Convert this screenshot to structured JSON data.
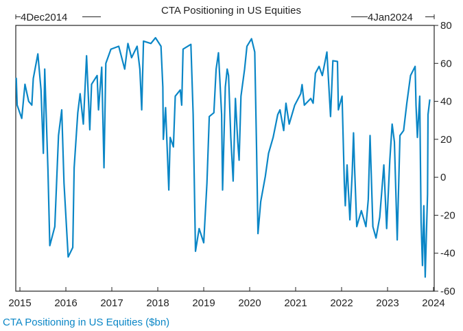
{
  "chart_data": {
    "type": "line",
    "title": "CTA Positioning in US Equities",
    "start_label": "4Dec2014",
    "end_label": "4Jan2024",
    "xlabel": "",
    "ylabel": "",
    "xlim": [
      2014.91,
      2024.015
    ],
    "ylim": [
      -60,
      80
    ],
    "x_ticks": [
      "2015",
      "2016",
      "2017",
      "2018",
      "2019",
      "2020",
      "2021",
      "2022",
      "2023",
      "2024"
    ],
    "y_ticks": [
      80,
      60,
      40,
      20,
      0,
      -20,
      -40,
      -60
    ],
    "y_axis_side": "right",
    "grid": false,
    "line_color": "#0a86c6",
    "legend": "bottom-left",
    "series": [
      {
        "name": "CTA Positioning in US Equities ($bn)",
        "points": [
          [
            2014.92,
            52.4
          ],
          [
            2014.94,
            38
          ],
          [
            2015.04,
            31
          ],
          [
            2015.11,
            49
          ],
          [
            2015.19,
            40
          ],
          [
            2015.26,
            38
          ],
          [
            2015.29,
            52
          ],
          [
            2015.39,
            65
          ],
          [
            2015.46,
            46
          ],
          [
            2015.51,
            12.6
          ],
          [
            2015.54,
            57
          ],
          [
            2015.61,
            4
          ],
          [
            2015.65,
            -36
          ],
          [
            2015.76,
            -26
          ],
          [
            2015.84,
            22
          ],
          [
            2015.91,
            35.5
          ],
          [
            2015.96,
            -3
          ],
          [
            2016.05,
            -42
          ],
          [
            2016.15,
            -37
          ],
          [
            2016.18,
            5
          ],
          [
            2016.26,
            34
          ],
          [
            2016.31,
            44
          ],
          [
            2016.38,
            28
          ],
          [
            2016.45,
            64
          ],
          [
            2016.52,
            25
          ],
          [
            2016.56,
            49
          ],
          [
            2016.68,
            53.6
          ],
          [
            2016.71,
            35.5
          ],
          [
            2016.78,
            58
          ],
          [
            2016.83,
            5
          ],
          [
            2016.87,
            60
          ],
          [
            2016.98,
            67.5
          ],
          [
            2017.15,
            69
          ],
          [
            2017.28,
            57
          ],
          [
            2017.35,
            70.5
          ],
          [
            2017.43,
            63
          ],
          [
            2017.55,
            69
          ],
          [
            2017.61,
            57
          ],
          [
            2017.65,
            35.5
          ],
          [
            2017.69,
            71.7
          ],
          [
            2017.85,
            70.5
          ],
          [
            2017.95,
            73.5
          ],
          [
            2018.07,
            69
          ],
          [
            2018.11,
            47.5
          ],
          [
            2018.12,
            20
          ],
          [
            2018.17,
            36.7
          ],
          [
            2018.24,
            -6.7
          ],
          [
            2018.27,
            21
          ],
          [
            2018.34,
            16
          ],
          [
            2018.38,
            42.7
          ],
          [
            2018.49,
            46
          ],
          [
            2018.52,
            38
          ],
          [
            2018.55,
            67.5
          ],
          [
            2018.72,
            70
          ],
          [
            2018.77,
            33
          ],
          [
            2018.82,
            -39
          ],
          [
            2018.9,
            -27
          ],
          [
            2019.0,
            -34.5
          ],
          [
            2019.07,
            -3
          ],
          [
            2019.12,
            32
          ],
          [
            2019.22,
            34
          ],
          [
            2019.27,
            57
          ],
          [
            2019.32,
            65.6
          ],
          [
            2019.39,
            33
          ],
          [
            2019.41,
            -6.7
          ],
          [
            2019.47,
            47.5
          ],
          [
            2019.51,
            57
          ],
          [
            2019.54,
            53.6
          ],
          [
            2019.59,
            21
          ],
          [
            2019.64,
            -2
          ],
          [
            2019.69,
            41.5
          ],
          [
            2019.74,
            18.6
          ],
          [
            2019.77,
            9
          ],
          [
            2019.81,
            42.7
          ],
          [
            2019.89,
            57
          ],
          [
            2019.94,
            69
          ],
          [
            2020.04,
            73
          ],
          [
            2020.11,
            66
          ],
          [
            2020.15,
            13.8
          ],
          [
            2020.18,
            -29.7
          ],
          [
            2020.24,
            -12.8
          ],
          [
            2020.34,
            0.5
          ],
          [
            2020.41,
            12.6
          ],
          [
            2020.51,
            21
          ],
          [
            2020.61,
            33
          ],
          [
            2020.66,
            35.5
          ],
          [
            2020.74,
            24.6
          ],
          [
            2020.79,
            39
          ],
          [
            2020.86,
            28
          ],
          [
            2020.98,
            38
          ],
          [
            2021.11,
            44
          ],
          [
            2021.14,
            48.8
          ],
          [
            2021.19,
            38
          ],
          [
            2021.33,
            41.5
          ],
          [
            2021.38,
            39
          ],
          [
            2021.43,
            54.8
          ],
          [
            2021.51,
            58.4
          ],
          [
            2021.58,
            53.6
          ],
          [
            2021.68,
            66
          ],
          [
            2021.76,
            32
          ],
          [
            2021.81,
            61.4
          ],
          [
            2021.91,
            61
          ],
          [
            2021.93,
            35.5
          ],
          [
            2022.01,
            42.7
          ],
          [
            2022.06,
            -3
          ],
          [
            2022.08,
            -15
          ],
          [
            2022.12,
            6.5
          ],
          [
            2022.18,
            -22.4
          ],
          [
            2022.23,
            1.7
          ],
          [
            2022.26,
            23.4
          ],
          [
            2022.28,
            6.5
          ],
          [
            2022.33,
            -26
          ],
          [
            2022.43,
            -17.6
          ],
          [
            2022.53,
            -26
          ],
          [
            2022.58,
            -11.6
          ],
          [
            2022.62,
            22
          ],
          [
            2022.68,
            -26
          ],
          [
            2022.75,
            -32
          ],
          [
            2022.83,
            -21
          ],
          [
            2022.92,
            6.5
          ],
          [
            2022.98,
            -27
          ],
          [
            2023.05,
            9
          ],
          [
            2023.1,
            28
          ],
          [
            2023.15,
            18.6
          ],
          [
            2023.21,
            -33
          ],
          [
            2023.27,
            22
          ],
          [
            2023.35,
            24.6
          ],
          [
            2023.42,
            39
          ],
          [
            2023.5,
            53.6
          ],
          [
            2023.6,
            58.4
          ],
          [
            2023.62,
            38
          ],
          [
            2023.65,
            21
          ],
          [
            2023.7,
            42.7
          ],
          [
            2023.73,
            -23.6
          ],
          [
            2023.76,
            -46.5
          ],
          [
            2023.79,
            -15
          ],
          [
            2023.82,
            -52.6
          ],
          [
            2023.87,
            -9
          ],
          [
            2023.88,
            33
          ],
          [
            2023.92,
            41
          ]
        ]
      }
    ]
  }
}
